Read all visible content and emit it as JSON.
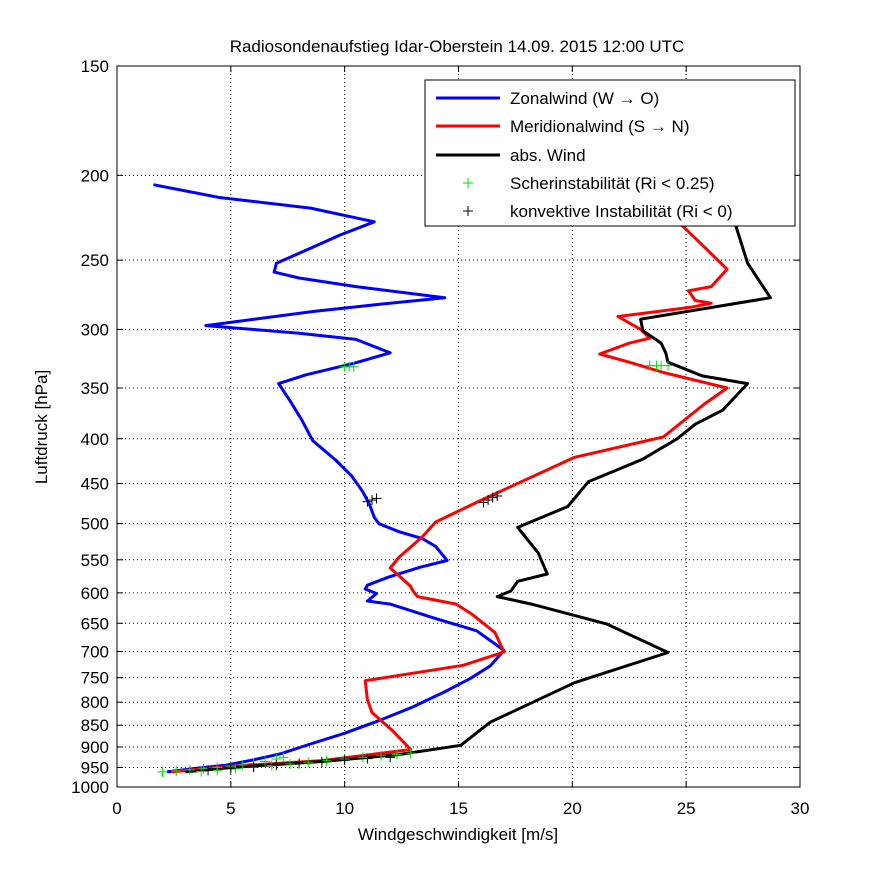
{
  "chart_data": {
    "type": "line",
    "title": "Radiosondenaufstieg Idar-Oberstein 14.09. 2015 12:00 UTC",
    "xlabel": "Windgeschwindigkeit [m/s]",
    "ylabel": "Luftdruck [hPa]",
    "xlim": [
      0,
      30
    ],
    "ylim": [
      1000,
      150
    ],
    "y_scale": "log",
    "y_reversed": true,
    "grid": true,
    "legend_position": "top-right",
    "x_ticks": [
      0,
      5,
      10,
      15,
      20,
      25,
      30
    ],
    "x_tick_labels": [
      "0",
      "5",
      "10",
      "15",
      "20",
      "25",
      "30"
    ],
    "y_ticks": [
      150,
      200,
      250,
      300,
      350,
      400,
      450,
      500,
      550,
      600,
      650,
      700,
      750,
      800,
      850,
      900,
      950,
      1000
    ],
    "y_tick_labels": [
      "150",
      "200",
      "250",
      "300",
      "350",
      "400",
      "450",
      "500",
      "550",
      "600",
      "650",
      "700",
      "750",
      "800",
      "850",
      "900",
      "950",
      "1000"
    ],
    "colors": {
      "zonal": "#0000ff",
      "meridional": "#ff0000",
      "absolute": "#000000",
      "shear": "#00dd00",
      "convective": "#000000"
    },
    "series": [
      {
        "name": "Zonalwind (W → O)",
        "kind": "line",
        "points": [
          [
            1.6,
            205
          ],
          [
            4.5,
            212
          ],
          [
            8.5,
            218
          ],
          [
            11.3,
            226
          ],
          [
            9.8,
            234
          ],
          [
            8.4,
            243
          ],
          [
            7.0,
            252
          ],
          [
            6.9,
            258
          ],
          [
            8.0,
            262
          ],
          [
            10.5,
            268
          ],
          [
            14.4,
            276
          ],
          [
            11.4,
            281
          ],
          [
            8.7,
            286
          ],
          [
            3.9,
            297
          ],
          [
            8.0,
            303
          ],
          [
            10.5,
            308
          ],
          [
            12.0,
            319
          ],
          [
            10.4,
            328
          ],
          [
            8.3,
            338
          ],
          [
            7.1,
            346
          ],
          [
            7.6,
            362
          ],
          [
            8.1,
            380
          ],
          [
            8.6,
            402
          ],
          [
            9.6,
            423
          ],
          [
            10.3,
            441
          ],
          [
            10.8,
            460
          ],
          [
            11.1,
            476
          ],
          [
            11.3,
            492
          ],
          [
            11.5,
            500
          ],
          [
            12.4,
            511
          ],
          [
            13.4,
            520
          ],
          [
            14.0,
            531
          ],
          [
            14.5,
            551
          ],
          [
            13.3,
            561
          ],
          [
            11.9,
            576
          ],
          [
            11.0,
            588
          ],
          [
            10.9,
            594
          ],
          [
            11.4,
            601
          ],
          [
            11.0,
            613
          ],
          [
            12.0,
            618
          ],
          [
            14.0,
            642
          ],
          [
            15.8,
            663
          ],
          [
            17.0,
            698
          ],
          [
            16.4,
            727
          ],
          [
            15.5,
            752
          ],
          [
            14.5,
            776
          ],
          [
            13.0,
            810
          ],
          [
            11.5,
            840
          ],
          [
            10.0,
            868
          ],
          [
            8.5,
            893
          ],
          [
            7.2,
            916
          ],
          [
            6.0,
            931
          ],
          [
            4.8,
            944
          ],
          [
            3.5,
            952
          ],
          [
            2.2,
            961
          ]
        ]
      },
      {
        "name": "Meridionalwind (S → N)",
        "kind": "line",
        "points": [
          [
            24.8,
            228
          ],
          [
            25.9,
            243
          ],
          [
            26.8,
            256
          ],
          [
            26.1,
            268
          ],
          [
            25.1,
            271
          ],
          [
            25.4,
            278
          ],
          [
            26.1,
            280
          ],
          [
            25.2,
            283
          ],
          [
            22.0,
            290
          ],
          [
            23.0,
            300
          ],
          [
            23.4,
            307
          ],
          [
            22.5,
            311
          ],
          [
            21.2,
            320
          ],
          [
            22.5,
            327
          ],
          [
            24.0,
            336
          ],
          [
            26.8,
            350
          ],
          [
            25.8,
            365
          ],
          [
            24.0,
            398
          ],
          [
            20.1,
            420
          ],
          [
            16.0,
            470
          ],
          [
            14.0,
            498
          ],
          [
            13.4,
            518
          ],
          [
            12.4,
            546
          ],
          [
            12.0,
            562
          ],
          [
            12.5,
            577
          ],
          [
            12.9,
            590
          ],
          [
            13.0,
            597
          ],
          [
            13.2,
            606
          ],
          [
            14.9,
            618
          ],
          [
            15.6,
            635
          ],
          [
            16.6,
            666
          ],
          [
            17.0,
            701
          ],
          [
            15.2,
            726
          ],
          [
            10.9,
            756
          ],
          [
            11.0,
            795
          ],
          [
            11.2,
            822
          ],
          [
            12.1,
            862
          ],
          [
            12.9,
            906
          ],
          [
            9.0,
            933
          ],
          [
            5.0,
            947
          ],
          [
            2.4,
            961
          ]
        ]
      },
      {
        "name": "abs. Wind",
        "kind": "line",
        "points": [
          [
            27.1,
            225
          ],
          [
            27.7,
            252
          ],
          [
            28.7,
            276
          ],
          [
            23.0,
            292
          ],
          [
            23.1,
            301
          ],
          [
            23.9,
            311
          ],
          [
            24.1,
            319
          ],
          [
            24.2,
            327
          ],
          [
            25.7,
            339
          ],
          [
            27.7,
            346
          ],
          [
            26.6,
            371
          ],
          [
            25.4,
            385
          ],
          [
            24.6,
            400
          ],
          [
            23.1,
            422
          ],
          [
            20.7,
            448
          ],
          [
            19.8,
            478
          ],
          [
            17.6,
            505
          ],
          [
            18.5,
            540
          ],
          [
            18.9,
            571
          ],
          [
            17.6,
            582
          ],
          [
            17.3,
            597
          ],
          [
            16.7,
            606
          ],
          [
            18.2,
            618
          ],
          [
            21.5,
            651
          ],
          [
            24.2,
            702
          ],
          [
            20.1,
            760
          ],
          [
            16.4,
            843
          ],
          [
            15.1,
            896
          ],
          [
            12.4,
            918
          ],
          [
            9.0,
            935
          ],
          [
            5.0,
            950
          ],
          [
            3.0,
            961
          ]
        ]
      },
      {
        "name": "Scherinstabilität (Ri < 0.25)",
        "kind": "markers",
        "marker": "+",
        "points": [
          [
            10.0,
            331
          ],
          [
            10.2,
            331
          ],
          [
            10.4,
            331
          ],
          [
            23.4,
            330
          ],
          [
            23.7,
            330
          ],
          [
            23.9,
            330
          ],
          [
            24.2,
            330
          ],
          [
            2.0,
            961
          ],
          [
            2.6,
            959
          ],
          [
            3.2,
            956
          ],
          [
            3.8,
            953
          ],
          [
            4.4,
            950
          ],
          [
            5.0,
            947
          ],
          [
            5.5,
            944
          ],
          [
            6.0,
            940
          ],
          [
            6.5,
            935
          ],
          [
            7.0,
            929
          ],
          [
            7.3,
            925
          ],
          [
            3.7,
            960
          ],
          [
            4.4,
            957
          ],
          [
            5.2,
            953
          ],
          [
            6.0,
            949
          ],
          [
            6.8,
            945
          ],
          [
            7.6,
            941
          ],
          [
            8.4,
            937
          ],
          [
            9.2,
            933
          ],
          [
            10.0,
            929
          ],
          [
            10.8,
            925
          ],
          [
            11.6,
            921
          ],
          [
            12.3,
            918
          ],
          [
            12.9,
            915
          ]
        ]
      },
      {
        "name": "konvektive Instabilität (Ri < 0)",
        "kind": "markers",
        "marker": "+",
        "points": [
          [
            11.0,
            472
          ],
          [
            11.2,
            470
          ],
          [
            11.4,
            468
          ],
          [
            16.1,
            473
          ],
          [
            16.3,
            470
          ],
          [
            16.5,
            467
          ],
          [
            16.7,
            465
          ],
          [
            4.0,
            957
          ],
          [
            5.0,
            953
          ],
          [
            6.0,
            949
          ],
          [
            7.0,
            944
          ],
          [
            8.0,
            940
          ],
          [
            9.0,
            936
          ],
          [
            10.0,
            932
          ],
          [
            11.0,
            928
          ],
          [
            12.0,
            925
          ]
        ]
      }
    ]
  }
}
